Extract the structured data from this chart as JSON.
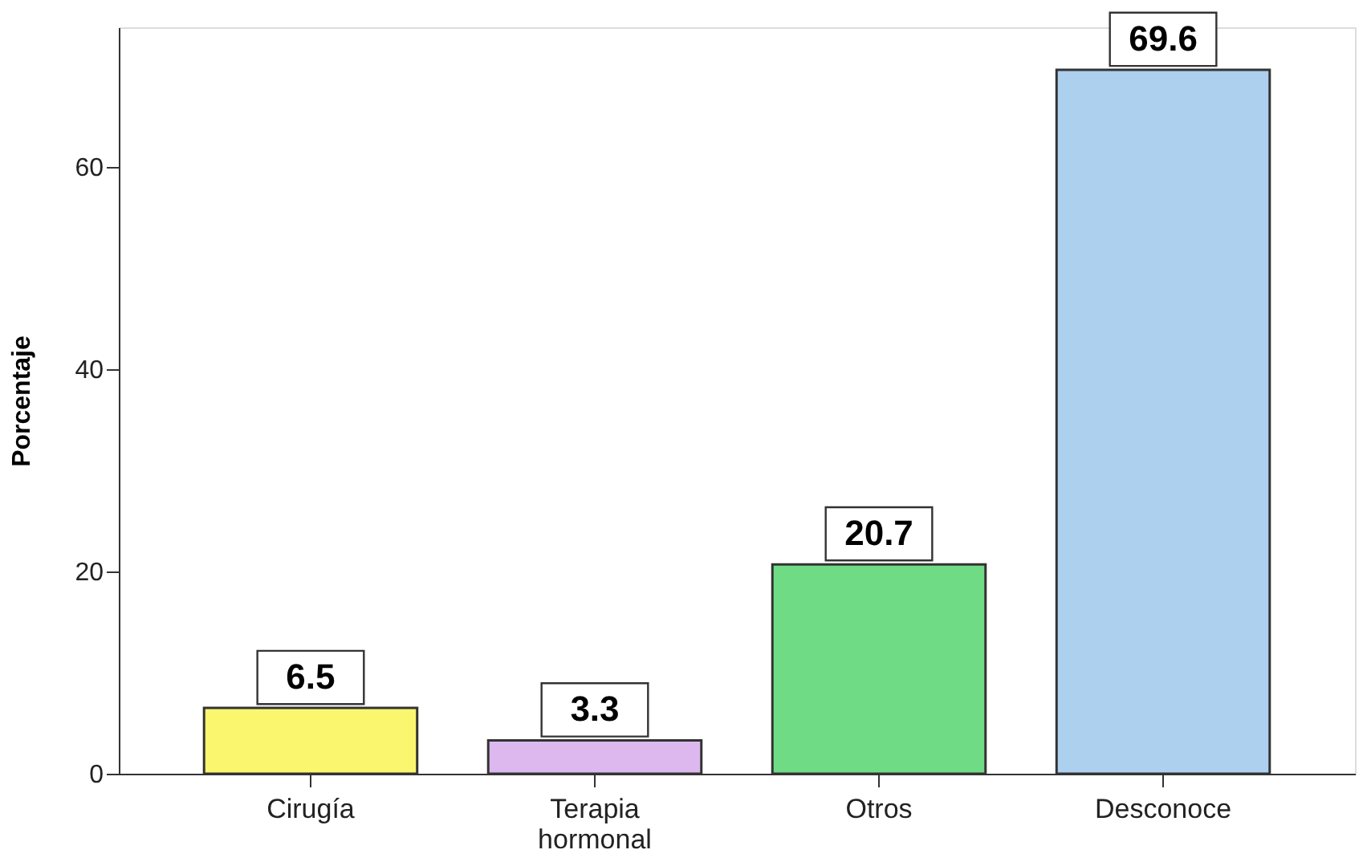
{
  "chart_data": {
    "type": "bar",
    "ylabel": "Porcentaje",
    "categories": [
      "Cirugía",
      "Terapia hormonal",
      "Otros",
      "Desconoce"
    ],
    "values": [
      6.5,
      3.3,
      20.7,
      69.6
    ],
    "colors": [
      "#faf76f",
      "#dcb8ef",
      "#6fdc85",
      "#acd0ee"
    ],
    "ylim": [
      0,
      73.8
    ],
    "yticks": [
      0,
      20,
      40,
      60
    ],
    "grid": false,
    "data_labels": true
  }
}
